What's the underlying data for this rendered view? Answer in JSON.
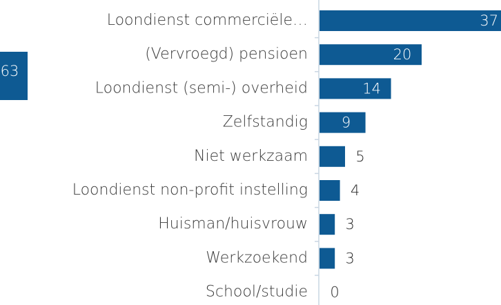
{
  "chart_data": {
    "type": "bar",
    "orientation": "horizontal",
    "categories": [
      "Loondienst commerciële…",
      "(Vervroegd) pensioen",
      "Loondienst (semi-) overheid",
      "Zelfstandig",
      "Niet werkzaam",
      "Loondienst non-profit instelling",
      "Huisman/huisvrouw",
      "Werkzoekend",
      "School/studie"
    ],
    "values": [
      37,
      20,
      14,
      9,
      5,
      4,
      3,
      3,
      0
    ],
    "color": "#0e5a93",
    "annotation": "63"
  }
}
